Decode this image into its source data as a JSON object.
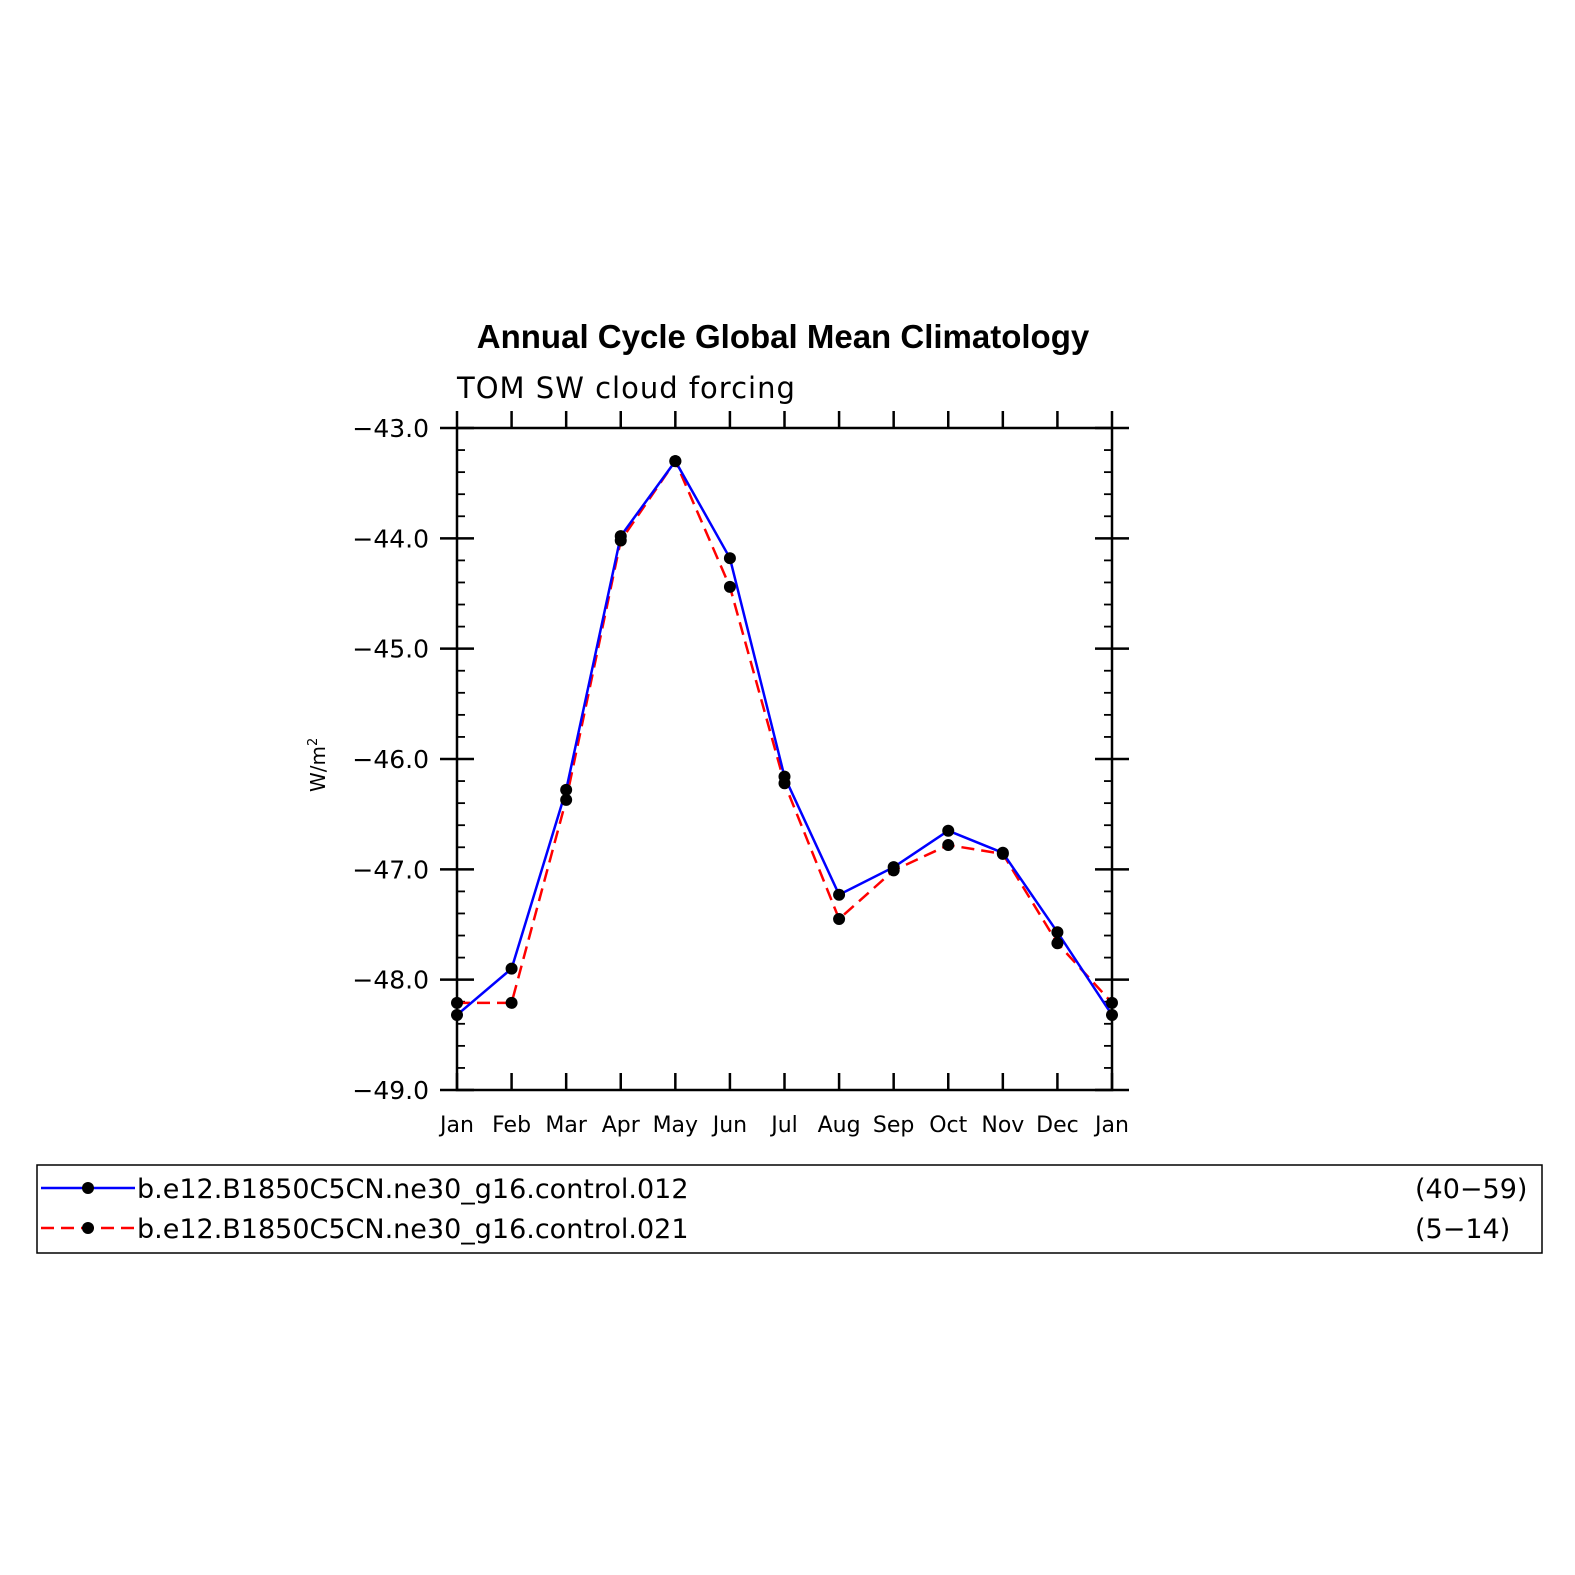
{
  "chart_data": {
    "type": "line",
    "title": "Annual Cycle Global Mean Climatology",
    "subtitle": "TOM SW cloud forcing",
    "ylabel": "W/m",
    "ylabel_superscript": "2",
    "categories": [
      "Jan",
      "Feb",
      "Mar",
      "Apr",
      "May",
      "Jun",
      "Jul",
      "Aug",
      "Sep",
      "Oct",
      "Nov",
      "Dec",
      "Jan"
    ],
    "ylim": [
      -49.0,
      -43.0
    ],
    "yticks": [
      -43.0,
      -44.0,
      -45.0,
      -46.0,
      -47.0,
      -48.0,
      -49.0
    ],
    "ytick_labels": [
      "−43.0",
      "−44.0",
      "−45.0",
      "−46.0",
      "−47.0",
      "−48.0",
      "−49.0"
    ],
    "grid": false,
    "legend_position": "bottom",
    "series": [
      {
        "name": "b.e12.B1850C5CN.ne30_g16.control.012",
        "years": "(40−59)",
        "color": "#0000ff",
        "style": "solid",
        "values": [
          -48.32,
          -47.9,
          -46.28,
          -43.98,
          -43.3,
          -44.18,
          -46.16,
          -47.23,
          -46.98,
          -46.65,
          -46.85,
          -47.57,
          -48.32
        ]
      },
      {
        "name": "b.e12.B1850C5CN.ne30_g16.control.021",
        "years": "(5−14)",
        "color": "#ff0000",
        "style": "dashed",
        "values": [
          -48.21,
          -48.21,
          -46.37,
          -44.02,
          -43.3,
          -44.44,
          -46.22,
          -47.45,
          -47.01,
          -46.78,
          -46.86,
          -47.67,
          -48.21
        ]
      }
    ]
  }
}
